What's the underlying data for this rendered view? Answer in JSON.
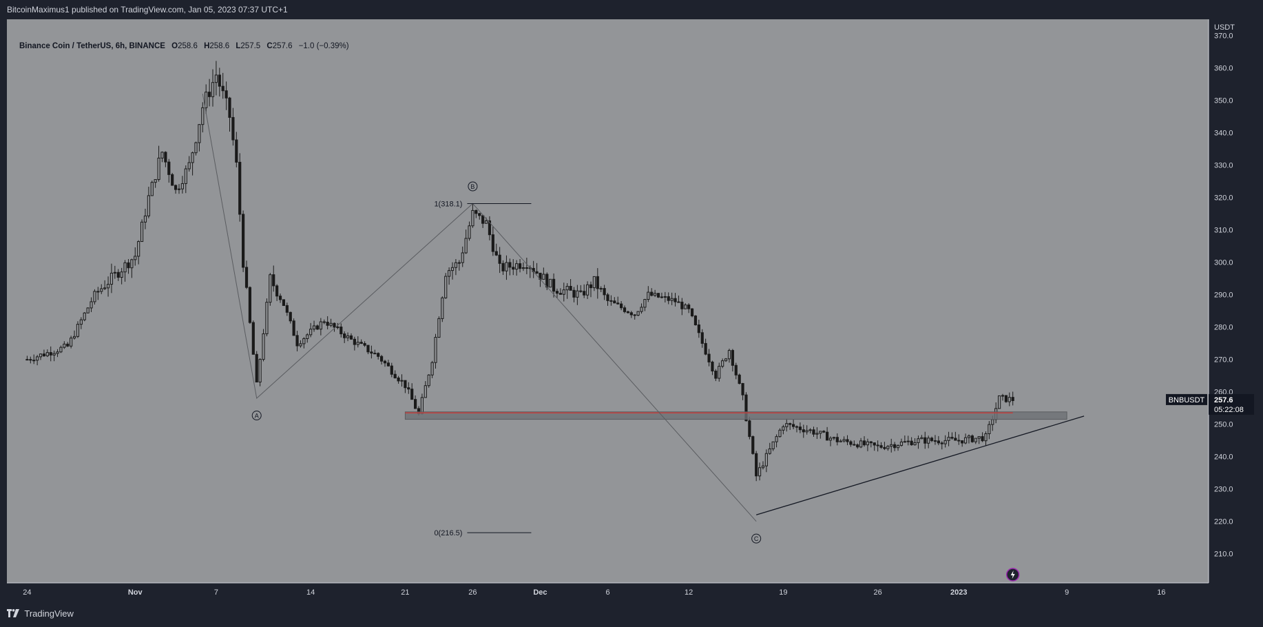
{
  "header": {
    "publisher_line": "BitcoinMaximus1 published on TradingView.com, Jan 05, 2023 07:37 UTC+1"
  },
  "legend": {
    "symbol": "Binance Coin / TetherUS, 6h, BINANCE",
    "o_label": "O",
    "o_value": "258.6",
    "h_label": "H",
    "h_value": "258.6",
    "l_label": "L",
    "l_value": "257.5",
    "c_label": "C",
    "c_value": "257.6",
    "change": "−1.0 (−0.39%)"
  },
  "footer": {
    "brand": "TradingView",
    "brand_icon": "tradingview-logo-icon"
  },
  "chart_data": {
    "type": "candlestick",
    "ylabel": "USDT",
    "ylim": [
      201,
      375
    ],
    "y_ticks": [
      "370.0",
      "360.0",
      "350.0",
      "340.0",
      "330.0",
      "320.0",
      "310.0",
      "300.0",
      "290.0",
      "280.0",
      "270.0",
      "260.0",
      "250.0",
      "240.0",
      "230.0",
      "220.0",
      "210.0"
    ],
    "x_ticks": [
      "24",
      "Nov",
      "7",
      "14",
      "21",
      "26",
      "Dec",
      "6",
      "12",
      "19",
      "26",
      "2023",
      "9",
      "16"
    ],
    "close_path": [
      [
        "2022-10-24",
        270
      ],
      [
        "2022-10-27",
        274
      ],
      [
        "2022-10-29",
        290
      ],
      [
        "2022-11-01",
        302
      ],
      [
        "2022-11-02",
        320
      ],
      [
        "2022-11-03",
        334
      ],
      [
        "2022-11-04",
        322
      ],
      [
        "2022-11-05",
        330
      ],
      [
        "2022-11-06",
        348
      ],
      [
        "2022-11-07",
        358
      ],
      [
        "2022-11-08",
        345
      ],
      [
        "2022-11-08T12",
        330
      ],
      [
        "2022-11-09",
        300
      ],
      [
        "2022-11-10",
        262
      ],
      [
        "2022-11-11",
        295
      ],
      [
        "2022-11-12",
        287
      ],
      [
        "2022-11-13",
        275
      ],
      [
        "2022-11-15",
        282
      ],
      [
        "2022-11-17",
        276
      ],
      [
        "2022-11-19",
        271
      ],
      [
        "2022-11-21",
        262
      ],
      [
        "2022-11-22",
        253
      ],
      [
        "2022-11-23",
        270
      ],
      [
        "2022-11-24",
        297
      ],
      [
        "2022-11-25",
        300
      ],
      [
        "2022-11-26",
        315
      ],
      [
        "2022-11-27",
        312
      ],
      [
        "2022-11-28",
        298
      ],
      [
        "2022-11-30",
        300
      ],
      [
        "2022-12-02",
        292
      ],
      [
        "2022-12-04",
        290
      ],
      [
        "2022-12-05",
        294
      ],
      [
        "2022-12-06",
        288
      ],
      [
        "2022-12-08",
        284
      ],
      [
        "2022-12-09",
        290
      ],
      [
        "2022-12-11",
        288
      ],
      [
        "2022-12-12",
        285
      ],
      [
        "2022-12-13",
        275
      ],
      [
        "2022-12-14",
        265
      ],
      [
        "2022-12-15",
        273
      ],
      [
        "2022-12-16",
        258
      ],
      [
        "2022-12-17",
        234
      ],
      [
        "2022-12-18",
        242
      ],
      [
        "2022-12-19",
        250
      ],
      [
        "2022-12-21",
        248
      ],
      [
        "2022-12-23",
        245
      ],
      [
        "2022-12-26",
        243
      ],
      [
        "2022-12-29",
        245
      ],
      [
        "2023-01-01",
        245
      ],
      [
        "2023-01-03",
        246
      ],
      [
        "2023-01-04",
        258
      ],
      [
        "2023-01-05",
        257.6
      ]
    ],
    "wave_labels": [
      {
        "label": "A",
        "x": "2022-11-10",
        "y": 258
      },
      {
        "label": "B",
        "x": "2022-11-26",
        "y": 318.1
      },
      {
        "label": "C",
        "x": "2022-12-17",
        "y": 220
      }
    ],
    "fib_levels": [
      {
        "label": "1(318.1)",
        "value": 318.1
      },
      {
        "label": "0(216.5)",
        "value": 216.5
      }
    ],
    "support_zone": {
      "low": 251.5,
      "high": 253.8,
      "line": 253.5
    },
    "ascending_trendline": [
      [
        "2022-12-17",
        222
      ],
      [
        "2023-01-09",
        252.5
      ]
    ],
    "last_price": {
      "symbol": "BNBUSDT",
      "price": "257.6",
      "countdown": "05:22:08"
    },
    "colors": {
      "plot_bg": "#939598",
      "candle": "#1a1a1a",
      "support_line": "#e0302b",
      "support_zone": "#6e7075",
      "grid": "#a3a5a8"
    }
  }
}
